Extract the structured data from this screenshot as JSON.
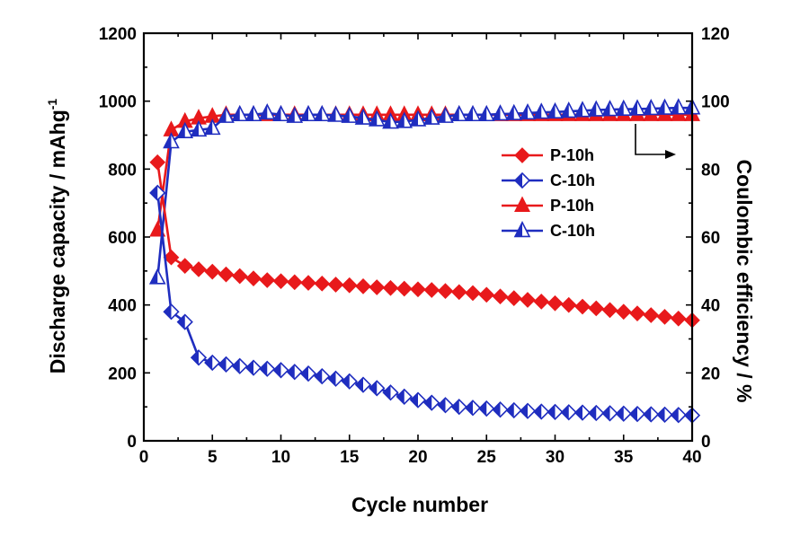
{
  "chart_data": {
    "type": "line",
    "xlabel": "Cycle number",
    "ylabel": "Discharge capacity / mAhg",
    "ylabel_sup": "-1",
    "y2label": "Coulombic efficiency / %",
    "xlim": [
      0,
      40
    ],
    "ylim": [
      0,
      1200
    ],
    "y2lim": [
      0,
      120
    ],
    "xticks": [
      0,
      5,
      10,
      15,
      20,
      25,
      30,
      35,
      40
    ],
    "yticks": [
      0,
      200,
      400,
      600,
      800,
      1000,
      1200
    ],
    "y2ticks": [
      0,
      20,
      40,
      60,
      80,
      100,
      120
    ],
    "grid": false,
    "legend_position": "right-middle",
    "annotation": "arrow pointing to right axis",
    "series": [
      {
        "name": "P-10h",
        "axis": "left",
        "marker": "diamond",
        "color": "#e8191b",
        "fill": "solid",
        "x": [
          1,
          2,
          3,
          4,
          5,
          6,
          7,
          8,
          9,
          10,
          11,
          12,
          13,
          14,
          15,
          16,
          17,
          18,
          19,
          20,
          21,
          22,
          23,
          24,
          25,
          26,
          27,
          28,
          29,
          30,
          31,
          32,
          33,
          34,
          35,
          36,
          37,
          38,
          39,
          40
        ],
        "values": [
          820,
          540,
          515,
          505,
          498,
          490,
          485,
          478,
          473,
          470,
          467,
          465,
          463,
          460,
          458,
          455,
          452,
          450,
          448,
          446,
          444,
          441,
          438,
          435,
          430,
          425,
          420,
          415,
          410,
          405,
          400,
          395,
          390,
          385,
          380,
          375,
          370,
          365,
          360,
          355
        ]
      },
      {
        "name": "C-10h",
        "axis": "left",
        "marker": "diamond-half",
        "color": "#1f2dbf",
        "fill": "half",
        "x": [
          1,
          2,
          3,
          4,
          5,
          6,
          7,
          8,
          9,
          10,
          11,
          12,
          13,
          14,
          15,
          16,
          17,
          18,
          19,
          20,
          21,
          22,
          23,
          24,
          25,
          26,
          27,
          28,
          29,
          30,
          31,
          32,
          33,
          34,
          35,
          36,
          37,
          38,
          39,
          40
        ],
        "values": [
          730,
          380,
          350,
          245,
          230,
          225,
          220,
          215,
          212,
          208,
          203,
          198,
          190,
          183,
          175,
          165,
          155,
          142,
          130,
          120,
          112,
          105,
          100,
          97,
          95,
          92,
          90,
          88,
          86,
          85,
          84,
          83,
          82,
          81,
          80,
          79,
          78,
          77,
          76,
          75
        ]
      },
      {
        "name": "P-10h",
        "axis": "right",
        "marker": "triangle",
        "color": "#e8191b",
        "fill": "solid",
        "x": [
          1,
          2,
          3,
          4,
          5,
          6,
          7,
          8,
          9,
          10,
          11,
          12,
          13,
          14,
          15,
          16,
          17,
          18,
          19,
          20,
          21,
          22,
          23,
          24,
          25,
          26,
          27,
          28,
          29,
          30,
          31,
          32,
          33,
          34,
          35,
          36,
          37,
          38,
          39,
          40
        ],
        "values": [
          62,
          91.5,
          94,
          95,
          95.5,
          96,
          96,
          96,
          96,
          96,
          96,
          96,
          96,
          96,
          96,
          96,
          96,
          96,
          96,
          96,
          96,
          96,
          96,
          96,
          96,
          96,
          96,
          96,
          96,
          96,
          96,
          96,
          96,
          96,
          96,
          96,
          96,
          96,
          96,
          96
        ]
      },
      {
        "name": "C-10h",
        "axis": "right",
        "marker": "triangle-half",
        "color": "#1f2dbf",
        "fill": "half",
        "x": [
          1,
          2,
          3,
          4,
          5,
          6,
          7,
          8,
          9,
          10,
          11,
          12,
          13,
          14,
          15,
          16,
          17,
          18,
          19,
          20,
          21,
          22,
          23,
          24,
          25,
          26,
          27,
          28,
          29,
          30,
          31,
          32,
          33,
          34,
          35,
          36,
          37,
          38,
          39,
          40
        ],
        "values": [
          48,
          88,
          91,
          91.5,
          92,
          95.5,
          96,
          96,
          96.5,
          96,
          95.5,
          96,
          96,
          95.8,
          95.5,
          95,
          94.5,
          93.8,
          94,
          94.5,
          95,
          95.5,
          96,
          96,
          96,
          96.2,
          96.3,
          96.5,
          96.7,
          96.8,
          97,
          97.2,
          97.4,
          97.5,
          97.6,
          97.7,
          97.8,
          97.9,
          98,
          98
        ]
      }
    ]
  }
}
